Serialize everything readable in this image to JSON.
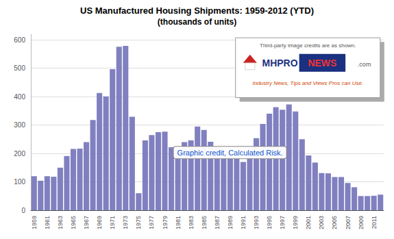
{
  "chart_data": {
    "type": "bar",
    "title": "US Manufactured Housing Shipments: 1959-2012 (YTD)",
    "subtitle": "(thousands of units)",
    "categories": [
      "1959",
      null,
      "1961",
      null,
      "1963",
      null,
      "1965",
      null,
      "1967",
      null,
      "1969",
      null,
      "1971",
      null,
      "1973",
      null,
      "1975",
      null,
      "1977",
      null,
      "1979",
      null,
      "1981",
      null,
      "1983",
      null,
      "1985",
      null,
      "1987",
      null,
      "1989",
      null,
      "1991",
      null,
      "1993",
      null,
      "1995",
      null,
      "1997",
      null,
      "1999",
      null,
      "2001",
      null,
      "2003",
      null,
      "2005",
      null,
      "2007",
      null,
      "2009",
      null,
      "2011",
      null
    ],
    "values": [
      120,
      104,
      120,
      118,
      150,
      191,
      216,
      217,
      240,
      318,
      413,
      401,
      497,
      576,
      579,
      329,
      60,
      246,
      265,
      275,
      277,
      222,
      215,
      240,
      246,
      295,
      283,
      241,
      222,
      219,
      198,
      188,
      170,
      209,
      254,
      304,
      340,
      363,
      354,
      373,
      348,
      250,
      193,
      168,
      131,
      130,
      117,
      117,
      96,
      81,
      50,
      50,
      51,
      55
    ],
    "color": "#8080C0",
    "ylim": [
      0,
      620
    ],
    "yticks": [
      0,
      100,
      200,
      300,
      400,
      500,
      600
    ],
    "grid": true,
    "annotations": [
      "Graphic credit, Calculated Risk.",
      "Third-party image credits are as shown.",
      "MHPRO",
      "NEWS",
      ".com",
      "Industry News, Tips and Views Pros can Use."
    ]
  }
}
